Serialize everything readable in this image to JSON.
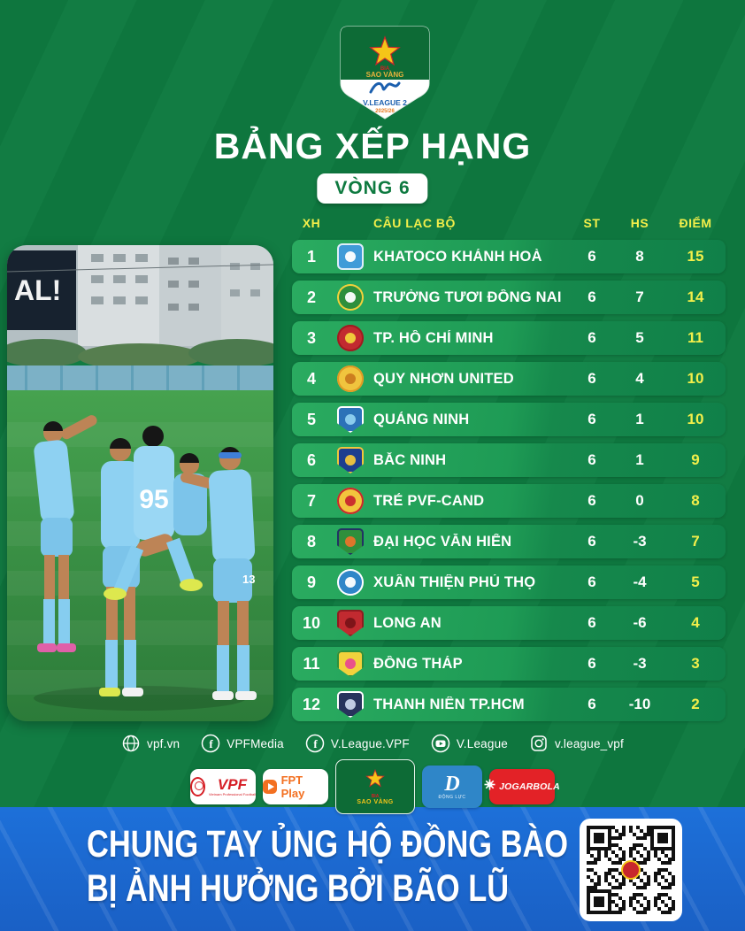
{
  "page": {
    "bg_green": "#0e7a40",
    "accent_yellow": "#f3ef4a",
    "banner_blue": "#1a66cf"
  },
  "badge": {
    "beer_brand_small": "BIA",
    "beer_brand_main": "SAO VÀNG",
    "league": "V.LEAGUE 2",
    "season": "2025/26"
  },
  "header": {
    "title": "BẢNG XẾP HẠNG",
    "round": "VÒNG 6"
  },
  "photo": {
    "description": "players in light blue kits celebrating a goal on pitch",
    "billboard_text": "AL!",
    "jersey_number_center": "95",
    "jersey_number_right": "13"
  },
  "table": {
    "columns": {
      "rank": "XH",
      "club": "CÂU LẠC BỘ",
      "played": "ST",
      "gd": "HS",
      "points": "ĐIỂM"
    },
    "rows": [
      {
        "rank": "1",
        "club": "KHATOCO KHÁNH HOÀ",
        "played": "6",
        "gd": "8",
        "points": "15",
        "logo": {
          "shape": "square",
          "c1": "#3f9bd8",
          "c2": "#dfeef8",
          "c3": "#ffffff"
        }
      },
      {
        "rank": "2",
        "club": "TRƯỜNG TƯƠI ĐỒNG NAI",
        "played": "6",
        "gd": "7",
        "points": "14",
        "logo": {
          "shape": "circle",
          "c1": "#2e8f3c",
          "c2": "#f2d23c",
          "c3": "#ffffff"
        }
      },
      {
        "rank": "3",
        "club": "TP. HỒ CHÍ MINH",
        "played": "6",
        "gd": "5",
        "points": "11",
        "logo": {
          "shape": "circle",
          "c1": "#c22a30",
          "c2": "#a01a20",
          "c3": "#f2d23c"
        }
      },
      {
        "rank": "4",
        "club": "QUY NHƠN UNITED",
        "played": "6",
        "gd": "4",
        "points": "10",
        "logo": {
          "shape": "circle",
          "c1": "#f0c43e",
          "c2": "#e09a25",
          "c3": "#c97a1d"
        }
      },
      {
        "rank": "5",
        "club": "QUẢNG NINH",
        "played": "6",
        "gd": "1",
        "points": "10",
        "logo": {
          "shape": "shield",
          "c1": "#2c72b8",
          "c2": "#ffffff",
          "c3": "#8fd0ef"
        }
      },
      {
        "rank": "6",
        "club": "BẮC NINH",
        "played": "6",
        "gd": "1",
        "points": "9",
        "logo": {
          "shape": "shield",
          "c1": "#1d3e8f",
          "c2": "#f2c53d",
          "c3": "#f2c53d"
        }
      },
      {
        "rank": "7",
        "club": "TRẺ PVF-CAND",
        "played": "6",
        "gd": "0",
        "points": "8",
        "logo": {
          "shape": "circle",
          "c1": "#f2c53d",
          "c2": "#c8272d",
          "c3": "#c8272d"
        }
      },
      {
        "rank": "8",
        "club": "ĐẠI HỌC VĂN HIẾN",
        "played": "6",
        "gd": "-3",
        "points": "7",
        "logo": {
          "shape": "shield",
          "c1": "#2e8f3c",
          "c2": "#223264",
          "c3": "#e8742a"
        }
      },
      {
        "rank": "9",
        "club": "XUÂN THIỆN PHÚ THỌ",
        "played": "6",
        "gd": "-4",
        "points": "5",
        "logo": {
          "shape": "circle",
          "c1": "#2f86c8",
          "c2": "#ffffff",
          "c3": "#ffffff"
        }
      },
      {
        "rank": "10",
        "club": "LONG AN",
        "played": "6",
        "gd": "-6",
        "points": "4",
        "logo": {
          "shape": "shield",
          "c1": "#c22a30",
          "c2": "#8f1b20",
          "c3": "#7a1318"
        }
      },
      {
        "rank": "11",
        "club": "ĐỒNG THÁP",
        "played": "6",
        "gd": "-3",
        "points": "3",
        "logo": {
          "shape": "shield",
          "c1": "#f2d23c",
          "c2": "#2e8f3c",
          "c3": "#e84a8f"
        }
      },
      {
        "rank": "12",
        "club": "THANH NIÊN TP.HCM",
        "played": "6",
        "gd": "-10",
        "points": "2",
        "logo": {
          "shape": "shield",
          "c1": "#27335c",
          "c2": "#ffffff",
          "c3": "#c8d4ea"
        }
      }
    ]
  },
  "chart_data": {
    "type": "table",
    "title": "BẢNG XẾP HẠNG - VÒNG 6",
    "columns": [
      "XH",
      "CÂU LẠC BỘ",
      "ST",
      "HS",
      "ĐIỂM"
    ],
    "rows": [
      [
        1,
        "KHATOCO KHÁNH HOÀ",
        6,
        8,
        15
      ],
      [
        2,
        "TRƯỜNG TƯƠI ĐỒNG NAI",
        6,
        7,
        14
      ],
      [
        3,
        "TP. HỒ CHÍ MINH",
        6,
        5,
        11
      ],
      [
        4,
        "QUY NHƠN UNITED",
        6,
        4,
        10
      ],
      [
        5,
        "QUẢNG NINH",
        6,
        1,
        10
      ],
      [
        6,
        "BẮC NINH",
        6,
        1,
        9
      ],
      [
        7,
        "TRẺ PVF-CAND",
        6,
        0,
        8
      ],
      [
        8,
        "ĐẠI HỌC VĂN HIẾN",
        6,
        -3,
        7
      ],
      [
        9,
        "XUÂN THIỆN PHÚ THỌ",
        6,
        -4,
        5
      ],
      [
        10,
        "LONG AN",
        6,
        -6,
        4
      ],
      [
        11,
        "ĐỒNG THÁP",
        6,
        -3,
        3
      ],
      [
        12,
        "THANH NIÊN TP.HCM",
        6,
        -10,
        2
      ]
    ]
  },
  "social": {
    "items": [
      {
        "icon": "globe-icon",
        "label": "vpf.vn"
      },
      {
        "icon": "facebook-icon",
        "label": "VPFMedia"
      },
      {
        "icon": "facebook-icon",
        "label": "V.League.VPF"
      },
      {
        "icon": "youtube-icon",
        "label": "V.League"
      },
      {
        "icon": "instagram-icon",
        "label": "v.league_vpf"
      }
    ]
  },
  "sponsors": [
    {
      "kind": "vpf",
      "name": "VPF",
      "text": "VPF",
      "subtext": "Vietnam Professional Football",
      "bg": "#ffffff",
      "color": "#d61f26"
    },
    {
      "kind": "fpt",
      "name": "FPT Play",
      "text": "FPT Play",
      "bg": "#ffffff",
      "color": "#f37021"
    },
    {
      "kind": "saovang",
      "name": "Bia Sao Vàng",
      "text": "SAO VÀNG",
      "subtext": "BIA",
      "bg": "#0d6b36",
      "color": "#f5c518"
    },
    {
      "kind": "dongluc",
      "name": "Động Lực",
      "text": "D",
      "subtext": "ĐỘNG LỰC",
      "bg": "#2f86c8",
      "color": "#ffffff"
    },
    {
      "kind": "joga",
      "name": "Jogarbola",
      "text": "JOGARBOLA",
      "bg": "#e32227",
      "color": "#ffffff"
    }
  ],
  "banner": {
    "line1": "CHUNG TAY ỦNG HỘ ĐỒNG BÀO",
    "line2": "BỊ ẢNH HƯỞNG BỞI BÃO LŨ"
  }
}
